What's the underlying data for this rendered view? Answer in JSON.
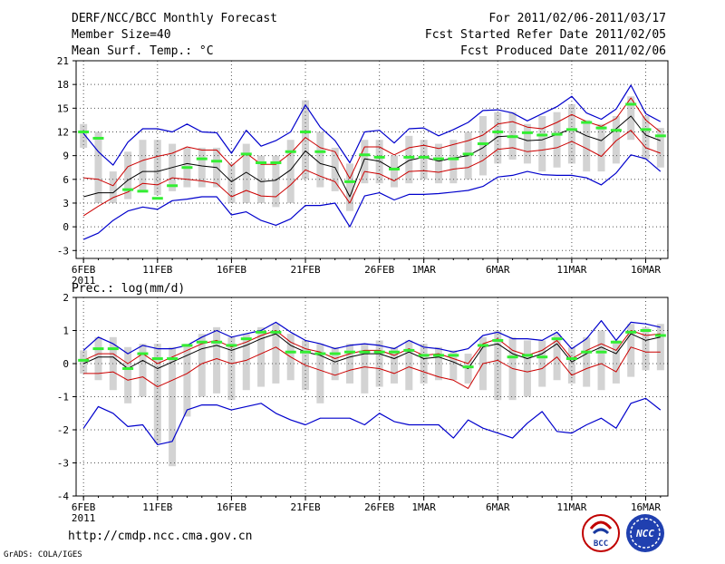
{
  "header": {
    "title": "DERF/NCC/BCC Monthly Forecast",
    "member_size": "Member Size=40",
    "variable": "Mean Surf. Temp.: °C",
    "period": "For 2011/02/06-2011/03/17",
    "refer_date": "Fcst Started Refer Date 2011/02/05",
    "produced_date": "Fcst Produced Date 2011/02/06"
  },
  "footer": {
    "url": "http://cmdp.ncc.cma.gov.cn",
    "credit": "GrADS: COLA/IGES",
    "logo_bcc": "BCC",
    "logo_ncc": "NCC"
  },
  "colors": {
    "ensemble_mean": "#000000",
    "inner_spread": "#cc0000",
    "outer_spread": "#0000cc",
    "member_range_bar": "#d3d3d3",
    "observed": "#33ee33",
    "grid": "#555555"
  },
  "chart_data": [
    {
      "type": "line",
      "title": "Mean Surf. Temp.: °C",
      "ylim": [
        -4,
        21
      ],
      "yticks": [
        -3,
        0,
        3,
        6,
        9,
        12,
        15,
        18,
        21
      ],
      "xlim": [
        0,
        40
      ],
      "x_start_label": "2011",
      "x_tick_labels": [
        {
          "day": 0,
          "label": "6FEB"
        },
        {
          "day": 5,
          "label": "11FEB"
        },
        {
          "day": 10,
          "label": "16FEB"
        },
        {
          "day": 15,
          "label": "21FEB"
        },
        {
          "day": 20,
          "label": "26FEB"
        },
        {
          "day": 23,
          "label": "1MAR"
        },
        {
          "day": 28,
          "label": "6MAR"
        },
        {
          "day": 33,
          "label": "11MAR"
        },
        {
          "day": 38,
          "label": "16MAR"
        }
      ],
      "series": [
        {
          "name": "ensemble_mean",
          "values": [
            3.8,
            4.3,
            4.3,
            5.9,
            7.0,
            7.0,
            7.5,
            8.0,
            7.7,
            7.5,
            5.7,
            6.9,
            5.7,
            5.9,
            7.2,
            9.6,
            8.0,
            7.5,
            3.8,
            8.6,
            8.3,
            7.2,
            8.4,
            8.8,
            8.3,
            8.7,
            9.0,
            10.0,
            11.4,
            11.5,
            10.9,
            11.0,
            11.7,
            12.4,
            11.5,
            10.9,
            12.4,
            14.0,
            11.6,
            10.9
          ]
        },
        {
          "name": "upper_inner",
          "values": [
            6.2,
            6.0,
            5.2,
            7.6,
            8.4,
            8.9,
            9.3,
            10.1,
            9.7,
            9.7,
            7.7,
            9.3,
            7.9,
            7.9,
            9.3,
            11.3,
            10.0,
            9.5,
            6.1,
            10.1,
            10.1,
            9.1,
            10.0,
            10.3,
            9.9,
            10.4,
            10.9,
            11.6,
            13.0,
            13.3,
            12.6,
            12.4,
            13.2,
            14.2,
            13.3,
            12.7,
            13.7,
            16.3,
            13.5,
            12.0
          ]
        },
        {
          "name": "lower_inner",
          "values": [
            1.4,
            2.6,
            3.7,
            4.4,
            5.5,
            5.3,
            6.2,
            6.0,
            5.8,
            5.5,
            3.8,
            4.6,
            3.9,
            3.8,
            5.3,
            7.2,
            6.4,
            5.7,
            3.0,
            7.0,
            6.7,
            5.8,
            7.0,
            7.1,
            6.9,
            7.3,
            7.5,
            8.4,
            9.8,
            10.0,
            9.5,
            9.7,
            10.0,
            10.8,
            9.9,
            8.9,
            10.9,
            12.2,
            10.0,
            9.3
          ]
        },
        {
          "name": "upper_outer",
          "values": [
            11.8,
            9.5,
            7.8,
            10.7,
            12.4,
            12.4,
            12.0,
            13.0,
            12.0,
            11.9,
            9.3,
            12.2,
            10.2,
            10.9,
            12.0,
            15.4,
            12.6,
            10.9,
            8.1,
            12.0,
            12.2,
            10.6,
            12.4,
            12.5,
            11.5,
            12.3,
            13.2,
            14.7,
            14.8,
            14.4,
            13.4,
            14.3,
            15.2,
            16.5,
            14.4,
            13.6,
            14.9,
            17.9,
            14.3,
            13.3
          ]
        },
        {
          "name": "lower_outer",
          "values": [
            -1.6,
            -0.8,
            0.8,
            2.0,
            2.5,
            2.2,
            3.3,
            3.5,
            3.8,
            3.8,
            1.5,
            1.9,
            0.8,
            0.2,
            1.0,
            2.7,
            2.7,
            3.0,
            0.0,
            3.9,
            4.3,
            3.4,
            4.1,
            4.1,
            4.2,
            4.4,
            4.6,
            5.1,
            6.3,
            6.5,
            7.0,
            6.6,
            6.5,
            6.5,
            6.2,
            5.3,
            6.8,
            9.1,
            8.6,
            7.0
          ]
        },
        {
          "name": "member_max",
          "values": [
            13.0,
            12.0,
            7.0,
            9.5,
            11.0,
            11.0,
            10.5,
            10.0,
            10.0,
            10.0,
            8.0,
            10.5,
            9.0,
            9.0,
            11.0,
            16.0,
            12.0,
            10.0,
            8.0,
            11.0,
            11.0,
            9.0,
            11.5,
            11.0,
            10.5,
            11.0,
            12.0,
            14.0,
            14.5,
            14.5,
            13.0,
            14.0,
            14.5,
            15.5,
            13.5,
            13.0,
            14.0,
            16.5,
            14.0,
            12.5
          ]
        },
        {
          "name": "member_min",
          "values": [
            10.0,
            3.0,
            3.0,
            3.5,
            4.5,
            4.0,
            4.5,
            5.0,
            5.0,
            5.0,
            3.0,
            3.0,
            3.0,
            2.5,
            3.0,
            6.0,
            5.0,
            4.5,
            2.0,
            5.5,
            5.5,
            5.0,
            5.5,
            6.0,
            5.5,
            5.5,
            6.0,
            6.5,
            8.0,
            8.5,
            8.0,
            7.0,
            7.5,
            8.0,
            7.0,
            7.0,
            8.0,
            11.0,
            8.5,
            7.5
          ]
        },
        {
          "name": "observed",
          "values": [
            12.0,
            11.2,
            null,
            4.7,
            4.5,
            3.6,
            5.2,
            7.5,
            8.6,
            8.3,
            null,
            9.2,
            8.1,
            8.1,
            9.5,
            12.0,
            9.5,
            null,
            5.7,
            9.1,
            8.8,
            7.3,
            8.8,
            8.8,
            8.6,
            8.6,
            9.2,
            10.5,
            12.0,
            11.4,
            11.9,
            11.6,
            11.7,
            12.3,
            13.2,
            12.5,
            12.2,
            15.5,
            12.3,
            11.5
          ]
        }
      ]
    },
    {
      "type": "line",
      "title": "Prec.: log(mm/d)",
      "ylim": [
        -4,
        2
      ],
      "yticks": [
        -4,
        -3,
        -2,
        -1,
        0,
        1,
        2
      ],
      "xlim": [
        0,
        40
      ],
      "x_start_label": "2011",
      "x_tick_labels": [
        {
          "day": 0,
          "label": "6FEB"
        },
        {
          "day": 5,
          "label": "11FEB"
        },
        {
          "day": 10,
          "label": "16FEB"
        },
        {
          "day": 15,
          "label": "21FEB"
        },
        {
          "day": 20,
          "label": "26FEB"
        },
        {
          "day": 23,
          "label": "1MAR"
        },
        {
          "day": 28,
          "label": "6MAR"
        },
        {
          "day": 33,
          "label": "11MAR"
        },
        {
          "day": 38,
          "label": "16MAR"
        }
      ],
      "series": [
        {
          "name": "ensemble_mean",
          "values": [
            0.0,
            0.2,
            0.2,
            -0.15,
            0.1,
            -0.15,
            0.05,
            0.25,
            0.45,
            0.55,
            0.4,
            0.55,
            0.75,
            0.9,
            0.55,
            0.35,
            0.25,
            0.05,
            0.2,
            0.3,
            0.3,
            0.15,
            0.35,
            0.15,
            0.2,
            0.05,
            -0.15,
            0.5,
            0.6,
            0.3,
            0.15,
            0.3,
            0.6,
            0.05,
            0.3,
            0.5,
            0.3,
            0.9,
            0.7,
            0.8
          ]
        },
        {
          "name": "upper_inner",
          "values": [
            0.1,
            0.3,
            0.3,
            0.0,
            0.3,
            0.0,
            0.2,
            0.4,
            0.6,
            0.7,
            0.5,
            0.65,
            0.85,
            1.0,
            0.65,
            0.45,
            0.35,
            0.15,
            0.3,
            0.4,
            0.4,
            0.25,
            0.45,
            0.25,
            0.3,
            0.15,
            0.0,
            0.6,
            0.75,
            0.4,
            0.25,
            0.4,
            0.7,
            0.15,
            0.4,
            0.6,
            0.4,
            1.0,
            0.85,
            0.9
          ]
        },
        {
          "name": "lower_inner",
          "values": [
            -0.3,
            -0.3,
            -0.25,
            -0.5,
            -0.4,
            -0.7,
            -0.5,
            -0.3,
            0.0,
            0.15,
            0.0,
            0.1,
            0.3,
            0.5,
            0.2,
            -0.05,
            -0.2,
            -0.35,
            -0.2,
            -0.1,
            -0.15,
            -0.3,
            -0.1,
            -0.25,
            -0.4,
            -0.5,
            -0.75,
            0.0,
            0.1,
            -0.15,
            -0.25,
            -0.15,
            0.2,
            -0.35,
            -0.15,
            0.0,
            -0.25,
            0.5,
            0.35,
            0.35
          ]
        },
        {
          "name": "upper_outer",
          "values": [
            0.4,
            0.8,
            0.6,
            0.3,
            0.55,
            0.45,
            0.45,
            0.55,
            0.8,
            1.0,
            0.8,
            0.9,
            1.0,
            1.25,
            0.95,
            0.7,
            0.6,
            0.45,
            0.55,
            0.6,
            0.55,
            0.45,
            0.7,
            0.5,
            0.45,
            0.35,
            0.45,
            0.85,
            0.95,
            0.75,
            0.75,
            0.7,
            0.95,
            0.45,
            0.75,
            1.3,
            0.7,
            1.25,
            1.2,
            1.1
          ]
        },
        {
          "name": "lower_outer",
          "values": [
            -1.95,
            -1.3,
            -1.5,
            -1.9,
            -1.85,
            -2.45,
            -2.35,
            -1.4,
            -1.25,
            -1.25,
            -1.4,
            -1.3,
            -1.2,
            -1.5,
            -1.7,
            -1.85,
            -1.65,
            -1.65,
            -1.65,
            -1.85,
            -1.5,
            -1.75,
            -1.85,
            -1.85,
            -1.85,
            -2.25,
            -1.7,
            -1.95,
            -2.1,
            -2.25,
            -1.8,
            -1.45,
            -2.05,
            -2.1,
            -1.85,
            -1.65,
            -1.95,
            -1.2,
            -1.05,
            -1.4
          ]
        },
        {
          "name": "member_max",
          "values": [
            0.4,
            0.8,
            0.8,
            0.5,
            0.6,
            0.6,
            0.5,
            0.6,
            0.9,
            1.1,
            0.8,
            0.9,
            1.1,
            1.2,
            0.9,
            0.7,
            0.6,
            0.5,
            0.6,
            0.6,
            0.7,
            0.5,
            0.7,
            0.6,
            0.5,
            0.4,
            0.3,
            0.8,
            1.0,
            0.8,
            0.7,
            0.7,
            0.9,
            0.5,
            0.8,
            1.0,
            0.7,
            1.2,
            1.1,
            1.2
          ]
        },
        {
          "name": "member_min",
          "values": [
            -0.3,
            -0.5,
            -0.8,
            -1.2,
            -1.0,
            -2.4,
            -3.1,
            -1.6,
            -1.0,
            -0.9,
            -1.1,
            -0.8,
            -0.7,
            -0.6,
            -0.5,
            -0.8,
            -1.2,
            -0.5,
            -0.6,
            -0.9,
            -0.7,
            -0.6,
            -0.8,
            -0.6,
            -0.5,
            -0.5,
            -0.6,
            -0.8,
            -1.1,
            -1.1,
            -1.0,
            -0.7,
            -0.5,
            -0.6,
            -0.7,
            -0.8,
            -0.6,
            -0.4,
            -0.2,
            -0.2
          ]
        },
        {
          "name": "observed",
          "values": [
            0.1,
            0.45,
            0.45,
            -0.15,
            0.3,
            0.15,
            0.15,
            0.55,
            0.65,
            0.65,
            0.55,
            0.75,
            0.95,
            0.95,
            0.35,
            0.35,
            0.3,
            0.3,
            0.35,
            0.35,
            0.35,
            0.35,
            0.4,
            0.25,
            0.25,
            0.25,
            -0.1,
            0.55,
            0.7,
            0.2,
            0.25,
            0.2,
            0.75,
            0.15,
            0.35,
            0.35,
            0.65,
            0.95,
            1.0,
            0.85
          ]
        }
      ]
    }
  ]
}
